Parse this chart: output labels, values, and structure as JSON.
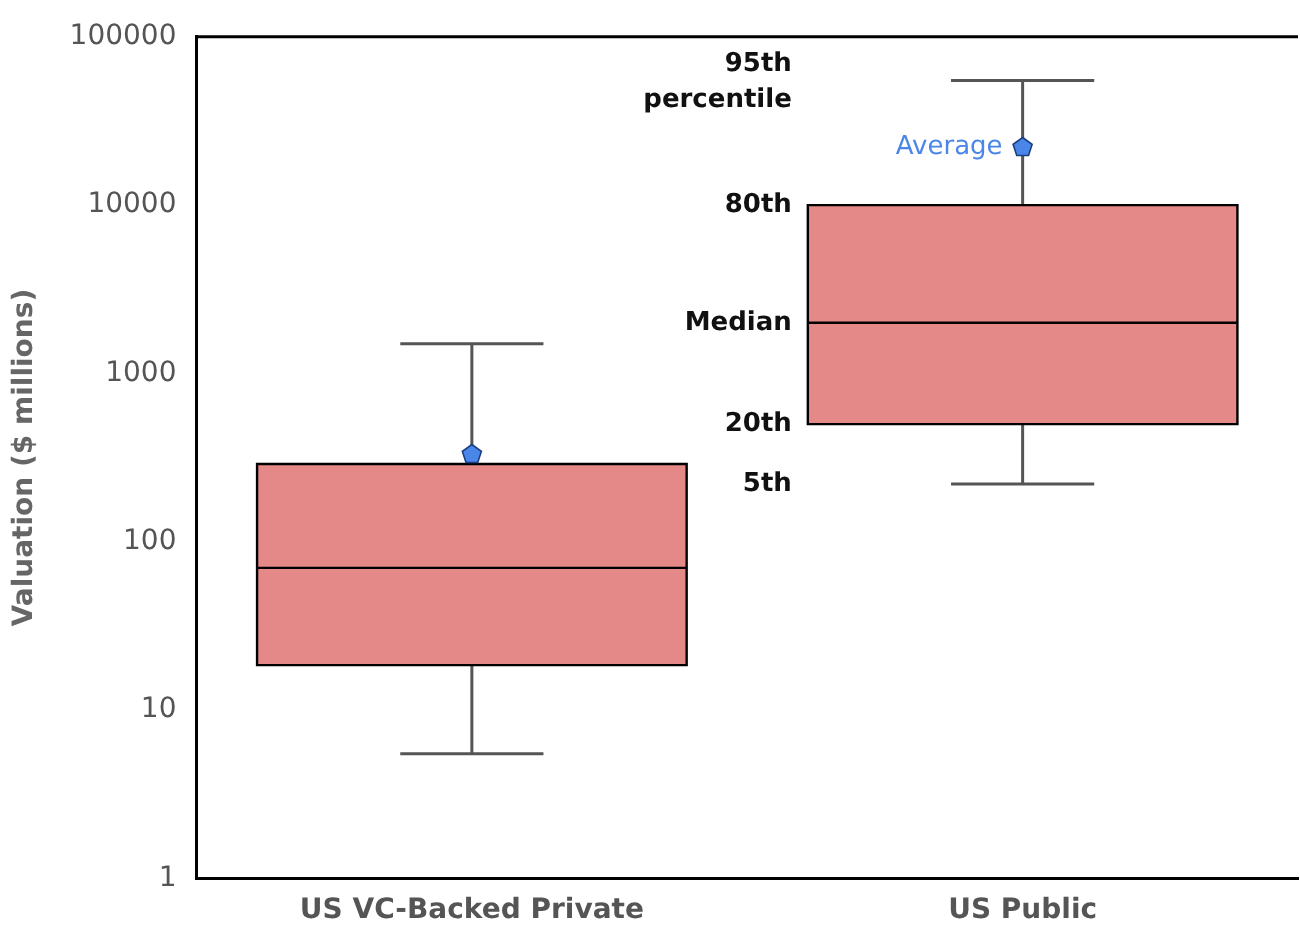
{
  "chart_data": {
    "type": "box",
    "ylabel": "Valuation ($ millions)",
    "categories": [
      "US VC-Backed Private",
      "US Public"
    ],
    "color": "#e48888",
    "log": true,
    "ylim": [
      1,
      100000
    ],
    "yticks": [
      1,
      10,
      100,
      1000,
      10000,
      100000
    ],
    "grid": false,
    "boxes": [
      {
        "low": 5.5,
        "q1": 18.5,
        "median": 70,
        "q3": 290,
        "high": 1500,
        "mean": 330
      },
      {
        "low": 220,
        "q1": 500,
        "median": 2000,
        "q3": 10000,
        "high": 55000,
        "mean": 22000
      }
    ],
    "annotations": [
      "95th percentile",
      "Average",
      "80th",
      "Median",
      "20th",
      "5th"
    ]
  }
}
